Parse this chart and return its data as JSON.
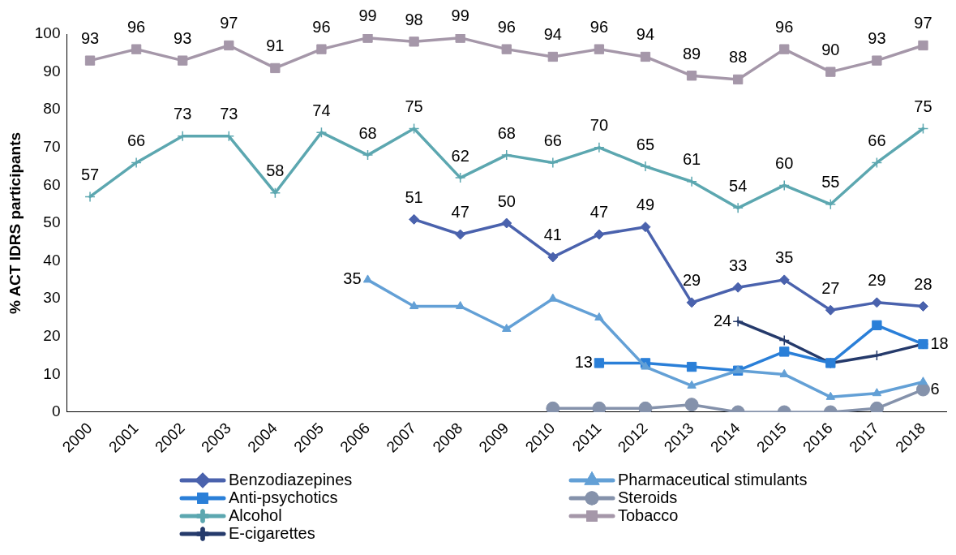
{
  "chart_data": {
    "type": "line",
    "ylabel": "% ACT IDRS participants",
    "categories": [
      "2000",
      "2001",
      "2002",
      "2003",
      "2004",
      "2005",
      "2006",
      "2007",
      "2008",
      "2009",
      "2010",
      "2011",
      "2012",
      "2013",
      "2014",
      "2015",
      "2016",
      "2017",
      "2018"
    ],
    "ylim": [
      0,
      100
    ],
    "yticks": [
      0,
      10,
      20,
      30,
      40,
      50,
      60,
      70,
      80,
      90,
      100
    ],
    "grid": false,
    "legend": "bottom",
    "series": [
      {
        "name": "Benzodiazepines",
        "color": "#4a62ad",
        "marker": "diamond",
        "values": [
          null,
          null,
          null,
          null,
          null,
          null,
          null,
          51,
          47,
          50,
          41,
          47,
          49,
          29,
          33,
          35,
          27,
          29,
          28
        ],
        "value_labels": [
          null,
          null,
          null,
          null,
          null,
          null,
          null,
          "51",
          "47",
          "50",
          "41",
          "47",
          "49",
          "29",
          "33",
          "35",
          "27",
          "29",
          "28"
        ]
      },
      {
        "name": "Pharmaceutical stimulants",
        "color": "#63a0d6",
        "marker": "triangle",
        "values": [
          null,
          null,
          null,
          null,
          null,
          null,
          35,
          28,
          28,
          22,
          30,
          25,
          12,
          7,
          11,
          10,
          4,
          5,
          8
        ],
        "value_labels": [
          null,
          null,
          null,
          null,
          null,
          null,
          "35",
          null,
          null,
          null,
          null,
          null,
          null,
          null,
          null,
          null,
          null,
          null,
          null
        ]
      },
      {
        "name": "Anti-psychotics",
        "color": "#2a7fd8",
        "marker": "square",
        "values": [
          null,
          null,
          null,
          null,
          null,
          null,
          null,
          null,
          null,
          null,
          null,
          13,
          13,
          12,
          11,
          16,
          13,
          23,
          18
        ],
        "value_labels": [
          null,
          null,
          null,
          null,
          null,
          null,
          null,
          null,
          null,
          null,
          null,
          "13",
          null,
          null,
          null,
          null,
          null,
          null,
          "18"
        ]
      },
      {
        "name": "Steroids",
        "color": "#8592ab",
        "marker": "circle",
        "values": [
          null,
          null,
          null,
          null,
          null,
          null,
          null,
          null,
          null,
          null,
          1,
          1,
          1,
          2,
          0,
          0,
          0,
          1,
          6
        ],
        "value_labels": [
          null,
          null,
          null,
          null,
          null,
          null,
          null,
          null,
          null,
          null,
          null,
          null,
          null,
          null,
          null,
          null,
          null,
          null,
          "6"
        ]
      },
      {
        "name": "Alcohol",
        "color": "#5ca7b0",
        "marker": "cross",
        "values": [
          57,
          66,
          73,
          73,
          58,
          74,
          68,
          75,
          62,
          68,
          66,
          70,
          65,
          61,
          54,
          60,
          55,
          66,
          75
        ],
        "value_labels": [
          "57",
          "66",
          "73",
          "73",
          "58",
          "74",
          "68",
          "75",
          "62",
          "68",
          "66",
          "70",
          "65",
          "61",
          "54",
          "60",
          "55",
          "66",
          "75"
        ]
      },
      {
        "name": "Tobacco",
        "color": "#a597a9",
        "marker": "square",
        "values": [
          93,
          96,
          93,
          97,
          91,
          96,
          99,
          98,
          99,
          96,
          94,
          96,
          94,
          89,
          88,
          96,
          90,
          93,
          97
        ],
        "value_labels": [
          "93",
          "96",
          "93",
          "97",
          "91",
          "96",
          "99",
          "98",
          "99",
          "96",
          "94",
          "96",
          "94",
          "89",
          "88",
          "96",
          "90",
          "93",
          "97"
        ]
      },
      {
        "name": "E-cigarettes",
        "color": "#253a6b",
        "marker": "cross",
        "values": [
          null,
          null,
          null,
          null,
          null,
          null,
          null,
          null,
          null,
          null,
          null,
          null,
          null,
          null,
          24,
          19,
          13,
          15,
          18
        ],
        "value_labels": [
          null,
          null,
          null,
          null,
          null,
          null,
          null,
          null,
          null,
          null,
          null,
          null,
          null,
          null,
          "24",
          null,
          null,
          null,
          null
        ]
      }
    ]
  }
}
